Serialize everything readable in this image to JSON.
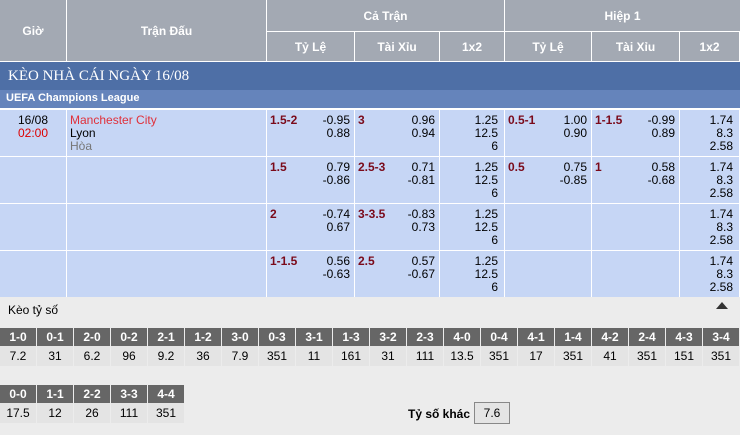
{
  "header": {
    "time": "Giờ",
    "match": "Trận Đấu",
    "full_time": "Cả Trận",
    "first_half": "Hiệp 1",
    "sub": [
      "Tỷ Lệ",
      "Tài Xỉu",
      "1x2",
      "Tỷ Lệ",
      "Tài Xỉu",
      "1x2"
    ]
  },
  "banner": "KÈO NHÀ CÁI NGÀY 16/08",
  "league": "UEFA Champions League",
  "match": {
    "date": "16/08",
    "time": "02:00",
    "home": "Manchester City",
    "away": "Lyon",
    "draw": "Hòa"
  },
  "rows": [
    [
      {
        "line": "1.5-2",
        "odds": [
          "-0.95",
          "0.88"
        ]
      },
      {
        "line": "3",
        "odds": [
          "0.96",
          "0.94"
        ]
      },
      {
        "odds": [
          "1.25",
          "12.5",
          "6"
        ]
      },
      {
        "line": "0.5-1",
        "odds": [
          "1.00",
          "0.90"
        ]
      },
      {
        "line": "1-1.5",
        "odds": [
          "-0.99",
          "0.89"
        ]
      },
      {
        "odds": [
          "1.74",
          "8.3",
          "2.58"
        ]
      }
    ],
    [
      {
        "line": "1.5",
        "odds": [
          "0.79",
          "-0.86"
        ]
      },
      {
        "line": "2.5-3",
        "odds": [
          "0.71",
          "-0.81"
        ]
      },
      {
        "odds": [
          "1.25",
          "12.5",
          "6"
        ]
      },
      {
        "line": "0.5",
        "odds": [
          "0.75",
          "-0.85"
        ]
      },
      {
        "line": "1",
        "odds": [
          "0.58",
          "-0.68"
        ]
      },
      {
        "odds": [
          "1.74",
          "8.3",
          "2.58"
        ]
      }
    ],
    [
      {
        "line": "2",
        "odds": [
          "-0.74",
          "0.67"
        ]
      },
      {
        "line": "3-3.5",
        "odds": [
          "-0.83",
          "0.73"
        ]
      },
      {
        "odds": [
          "1.25",
          "12.5",
          "6"
        ]
      },
      null,
      null,
      {
        "odds": [
          "1.74",
          "8.3",
          "2.58"
        ]
      }
    ],
    [
      {
        "line": "1-1.5",
        "odds": [
          "0.56",
          "-0.63"
        ]
      },
      {
        "line": "2.5",
        "odds": [
          "0.57",
          "-0.67"
        ]
      },
      {
        "odds": [
          "1.25",
          "12.5",
          "6"
        ]
      },
      null,
      null,
      {
        "odds": [
          "1.74",
          "8.3",
          "2.58"
        ]
      }
    ]
  ],
  "correct_score": {
    "title": "Kèo tỷ số",
    "scores": [
      {
        "score": "1-0",
        "odds": "7.2"
      },
      {
        "score": "0-1",
        "odds": "31"
      },
      {
        "score": "2-0",
        "odds": "6.2"
      },
      {
        "score": "0-2",
        "odds": "96"
      },
      {
        "score": "2-1",
        "odds": "9.2"
      },
      {
        "score": "1-2",
        "odds": "36"
      },
      {
        "score": "3-0",
        "odds": "7.9"
      },
      {
        "score": "0-3",
        "odds": "351"
      },
      {
        "score": "3-1",
        "odds": "11"
      },
      {
        "score": "1-3",
        "odds": "161"
      },
      {
        "score": "3-2",
        "odds": "31"
      },
      {
        "score": "2-3",
        "odds": "111"
      },
      {
        "score": "4-0",
        "odds": "13.5"
      },
      {
        "score": "0-4",
        "odds": "351"
      },
      {
        "score": "4-1",
        "odds": "17"
      },
      {
        "score": "1-4",
        "odds": "351"
      },
      {
        "score": "4-2",
        "odds": "41"
      },
      {
        "score": "2-4",
        "odds": "351"
      },
      {
        "score": "4-3",
        "odds": "151"
      },
      {
        "score": "3-4",
        "odds": "351"
      },
      {
        "score": "0-0",
        "odds": "17.5"
      },
      {
        "score": "1-1",
        "odds": "12"
      },
      {
        "score": "2-2",
        "odds": "26"
      },
      {
        "score": "3-3",
        "odds": "111"
      },
      {
        "score": "4-4",
        "odds": "351"
      }
    ],
    "other_label": "Tỷ số khác",
    "other_odds": "7.6"
  }
}
